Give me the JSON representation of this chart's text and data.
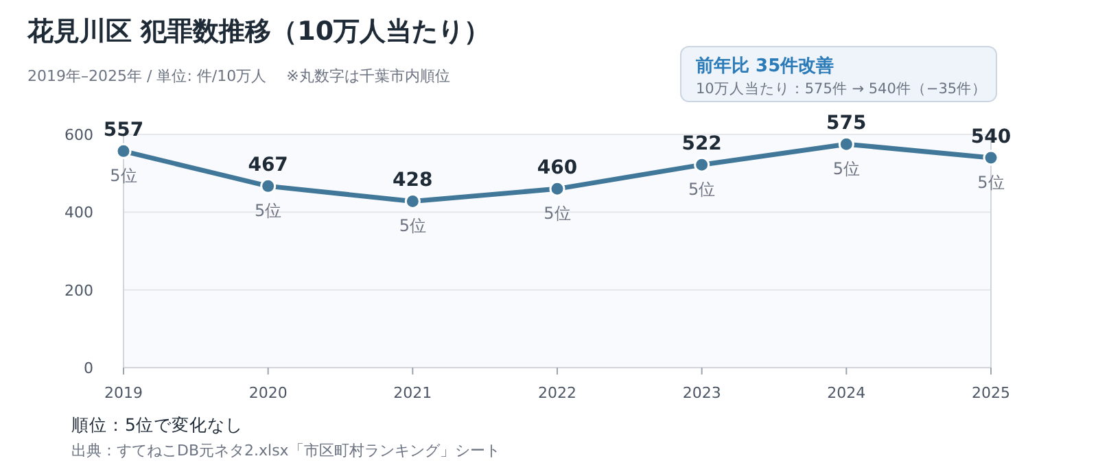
{
  "chart_data": {
    "type": "line",
    "title": "花見川区  犯罪数推移（10万人当たり）",
    "subtitle": "2019年–2025年 / 単位: 件/10万人　 ※丸数字は千葉市内順位",
    "categories": [
      "2019",
      "2020",
      "2021",
      "2022",
      "2023",
      "2024",
      "2025"
    ],
    "series": [
      {
        "color": "#41789a",
        "values": [
          557,
          467,
          428,
          460,
          522,
          575,
          540
        ]
      }
    ],
    "ylim": [
      0,
      600
    ],
    "yticks": [
      0,
      200,
      400,
      600
    ],
    "grid": "y",
    "marker": "circle",
    "line_style": "solid",
    "data_labels": true,
    "annotations": [
      {
        "text": "5位",
        "x": "2019",
        "y": 557
      },
      {
        "text": "5位",
        "x": "2020",
        "y": 467
      },
      {
        "text": "5位",
        "x": "2021",
        "y": 428
      },
      {
        "text": "5位",
        "x": "2022",
        "y": 460
      },
      {
        "text": "5位",
        "x": "2023",
        "y": 522
      },
      {
        "text": "5位",
        "x": "2024",
        "y": 575
      },
      {
        "text": "5位",
        "x": "2025",
        "y": 540
      },
      "前年比  35件改善",
      "10万人当たり：575件 → 540件（−35件）",
      "順位：5位で変化なし",
      "出典：すてねこDB元ネタ2.xlsx「市区町村ランキング」シート"
    ]
  }
}
